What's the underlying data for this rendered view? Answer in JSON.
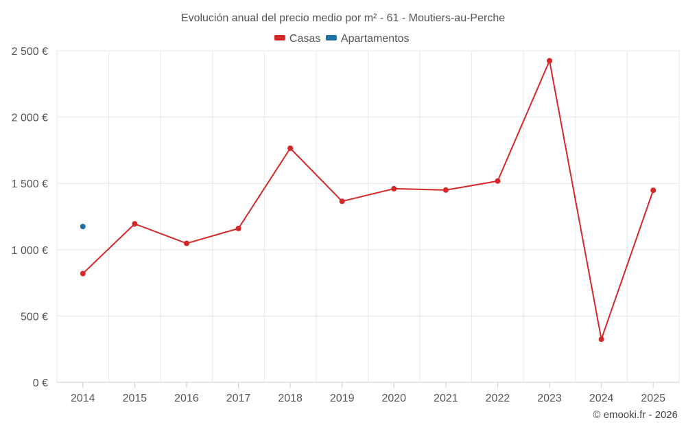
{
  "chart_data": {
    "type": "line",
    "title": "Evolución anual del precio medio por m² - 61 - Moutiers-au-Perche",
    "categories": [
      "2014",
      "2015",
      "2016",
      "2017",
      "2018",
      "2019",
      "2020",
      "2021",
      "2022",
      "2023",
      "2024",
      "2025"
    ],
    "series": [
      {
        "name": "Casas",
        "color": "#d62728",
        "values": [
          820,
          1195,
          1048,
          1160,
          1765,
          1365,
          1460,
          1450,
          1518,
          2425,
          325,
          1448
        ]
      },
      {
        "name": "Apartamentos",
        "color": "#1f6fa3",
        "values": [
          1175,
          null,
          null,
          null,
          null,
          null,
          null,
          null,
          null,
          null,
          null,
          null
        ]
      }
    ],
    "ylim": [
      0,
      2500
    ],
    "yticks": [
      0,
      500,
      1000,
      1500,
      2000,
      2500
    ],
    "ytick_labels": [
      "0 €",
      "500 €",
      "1 000 €",
      "1 500 €",
      "2 000 €",
      "2 500 €"
    ],
    "xlabel": "",
    "ylabel": "",
    "grid": true,
    "legend_position": "top-center"
  },
  "credit": "© emooki.fr - 2026"
}
